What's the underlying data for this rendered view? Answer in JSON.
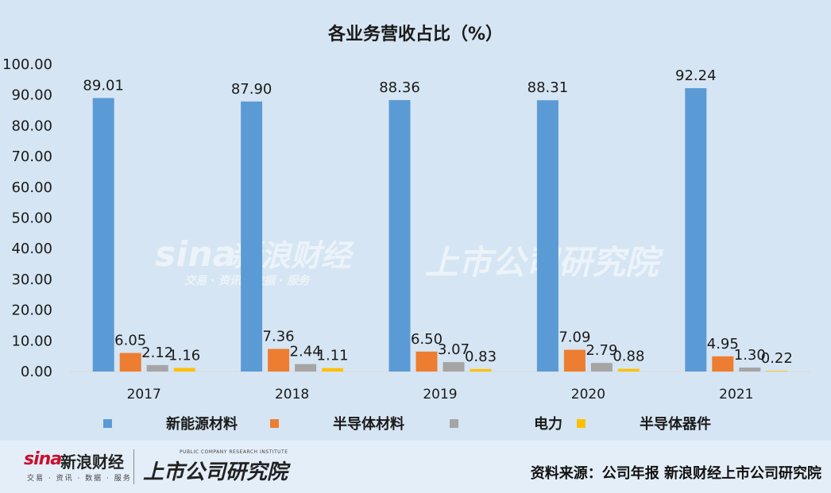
{
  "chart_data": {
    "type": "bar",
    "title": "各业务营收占比（%）",
    "categories": [
      "2017",
      "2018",
      "2019",
      "2020",
      "2021"
    ],
    "series": [
      {
        "name": "新能源材料",
        "color": "#5b9bd5",
        "values": [
          89.01,
          87.9,
          88.36,
          88.31,
          92.24
        ],
        "labels": [
          "89.01",
          "87.90",
          "88.36",
          "88.31",
          "92.24"
        ]
      },
      {
        "name": "半导体材料",
        "color": "#ed7d31",
        "values": [
          6.05,
          7.36,
          6.5,
          7.09,
          4.95
        ],
        "labels": [
          "6.05",
          "7.36",
          "6.50",
          "7.09",
          "4.95"
        ]
      },
      {
        "name": "电力",
        "color": "#a5a5a5",
        "values": [
          2.12,
          2.44,
          3.07,
          2.79,
          1.3
        ],
        "labels": [
          "2.12",
          "2.44",
          "3.07",
          "2.79",
          "1.30"
        ]
      },
      {
        "name": "半导体器件",
        "color": "#ffc000",
        "values": [
          1.16,
          1.11,
          0.83,
          0.88,
          0.22
        ],
        "labels": [
          "1.16",
          "1.11",
          "0.83",
          "0.88",
          "0.22"
        ]
      }
    ],
    "yticks": [
      "0.00",
      "10.00",
      "20.00",
      "30.00",
      "40.00",
      "50.00",
      "60.00",
      "70.00",
      "80.00",
      "90.00",
      "100.00"
    ],
    "ylim": [
      0,
      100
    ],
    "grid": false,
    "legend_position": "bottom"
  },
  "watermark": {
    "sina": "sina",
    "sina_cn": "新浪财经",
    "sina_sub": "交易 · 资讯 · 数据 · 服务",
    "research": "上市公司研究院"
  },
  "footer": {
    "sina_logo": "sina",
    "sina_cn": "新浪财经",
    "sina_sub": "交易 · 资讯 · 数据 · 服务",
    "research_logo": "上市公司研究院",
    "research_sub": "PUBLIC COMPANY RESEARCH INSTITUTE",
    "source": "资料来源：公司年报 新浪财经上市公司研究院"
  }
}
